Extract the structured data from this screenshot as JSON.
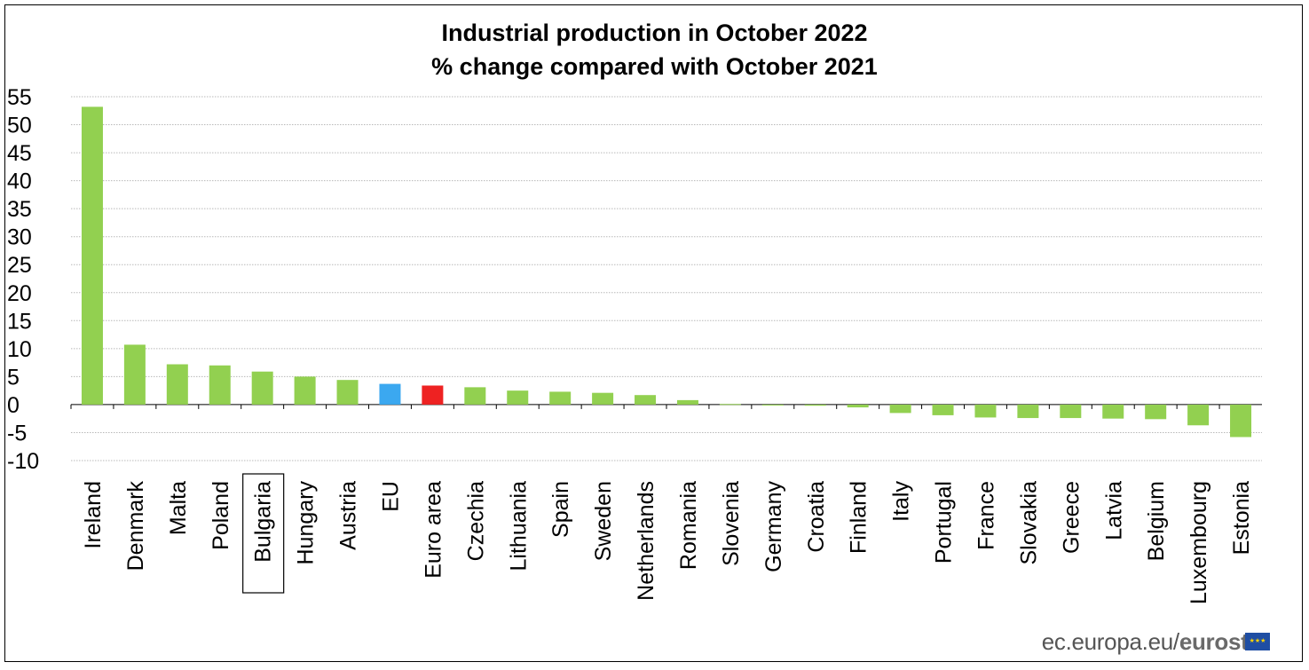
{
  "chart_data": {
    "type": "bar",
    "title": "Industrial production in October 2022",
    "subtitle": "% change compared with October 2021",
    "categories": [
      "Ireland",
      "Denmark",
      "Malta",
      "Poland",
      "Bulgaria",
      "Hungary",
      "Austria",
      "EU",
      "Euro area",
      "Czechia",
      "Lithuania",
      "Spain",
      "Sweden",
      "Netherlands",
      "Romania",
      "Slovenia",
      "Germany",
      "Croatia",
      "Finland",
      "Italy",
      "Portugal",
      "France",
      "Slovakia",
      "Greece",
      "Latvia",
      "Belgium",
      "Luxembourg",
      "Estonia"
    ],
    "values": [
      53.2,
      10.7,
      7.2,
      7.0,
      5.9,
      5.0,
      4.4,
      3.7,
      3.4,
      3.1,
      2.5,
      2.3,
      2.1,
      1.7,
      0.8,
      0.1,
      -0.1,
      -0.2,
      -0.5,
      -1.5,
      -1.9,
      -2.3,
      -2.4,
      -2.4,
      -2.5,
      -2.6,
      -3.7,
      -5.8
    ],
    "bar_colors": {
      "default": "#92d050",
      "EU": "#3ba8f0",
      "Euro area": "#ee2222"
    },
    "highlighted_category": "Bulgaria",
    "ylim": [
      -10,
      55
    ],
    "yticks": [
      55,
      50,
      45,
      40,
      35,
      30,
      25,
      20,
      15,
      10,
      5,
      0,
      -5,
      -10
    ],
    "xlabel": "",
    "ylabel": "",
    "grid": "horizontal-dotted",
    "legend": "none"
  },
  "footer": {
    "source_prefix": "ec.europa.eu/",
    "source_brand": "eurostat"
  }
}
